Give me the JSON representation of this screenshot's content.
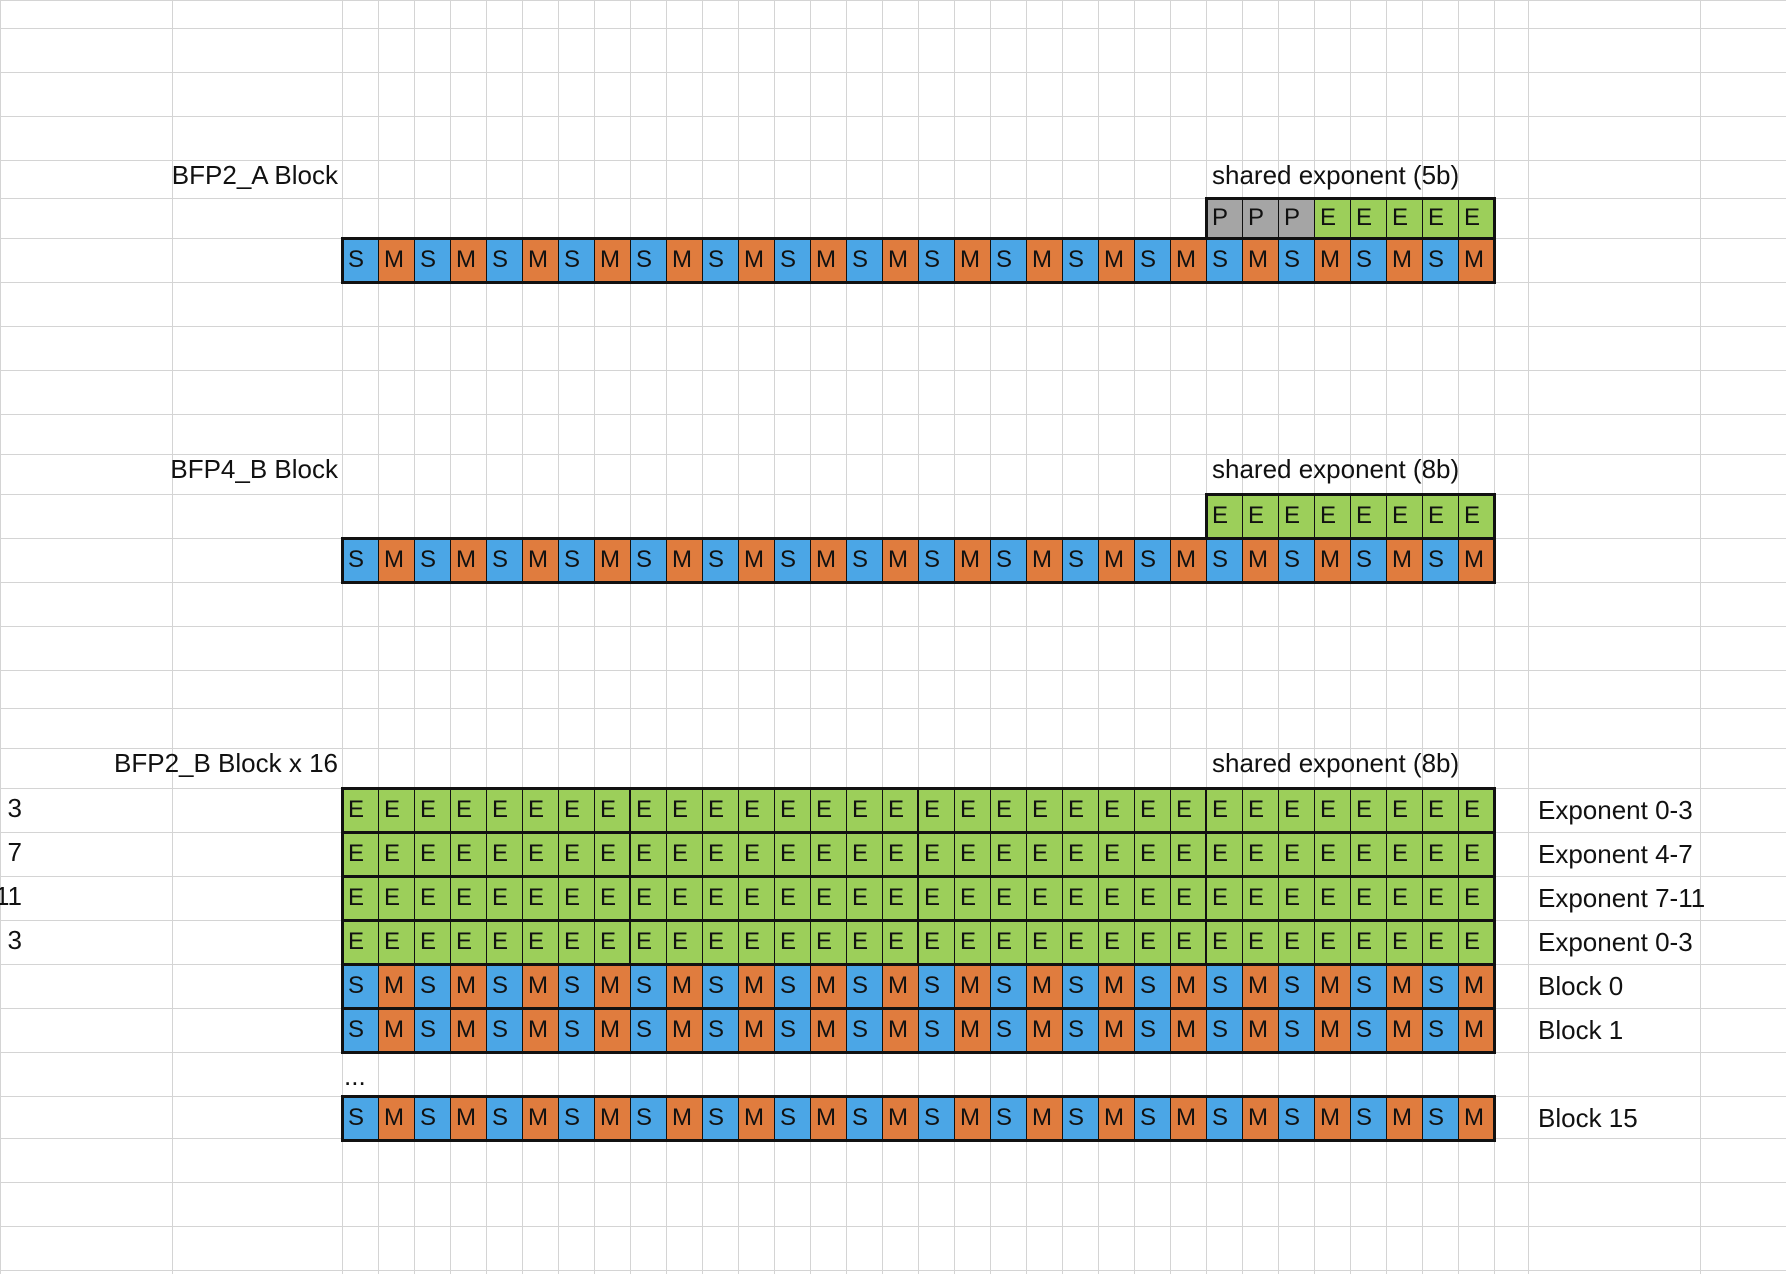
{
  "colors": {
    "sign": "#4ba6e6",
    "mantissa": "#e07c3e",
    "exponent": "#9ccf5a",
    "padding": "#a5a5a5",
    "gridline": "#d4d4d4"
  },
  "bfp2_a": {
    "title": "BFP2_A Block",
    "header": "shared exponent (5b)",
    "exponent_bits": [
      "P",
      "P",
      "P",
      "E",
      "E",
      "E",
      "E",
      "E"
    ],
    "mantissa_bits": [
      "S",
      "M",
      "S",
      "M",
      "S",
      "M",
      "S",
      "M",
      "S",
      "M",
      "S",
      "M",
      "S",
      "M",
      "S",
      "M",
      "S",
      "M",
      "S",
      "M",
      "S",
      "M",
      "S",
      "M",
      "S",
      "M",
      "S",
      "M",
      "S",
      "M",
      "S",
      "M"
    ]
  },
  "bfp4_b": {
    "title": "BFP4_B Block",
    "header": "shared exponent (8b)",
    "exponent_bits": [
      "E",
      "E",
      "E",
      "E",
      "E",
      "E",
      "E",
      "E"
    ],
    "mantissa_bits": [
      "S",
      "M",
      "S",
      "M",
      "S",
      "M",
      "S",
      "M",
      "S",
      "M",
      "S",
      "M",
      "S",
      "M",
      "S",
      "M",
      "S",
      "M",
      "S",
      "M",
      "S",
      "M",
      "S",
      "M",
      "S",
      "M",
      "S",
      "M",
      "S",
      "M",
      "S",
      "M"
    ]
  },
  "bfp2_b": {
    "title": "BFP2_B Block x 16",
    "header": "shared exponent (8b)",
    "ellipsis": "...",
    "left_fragments": [
      "3",
      "7",
      "11",
      "3"
    ],
    "rows": [
      {
        "kind": "exponent",
        "label": "Exponent 0-3",
        "bits": [
          "E",
          "E",
          "E",
          "E",
          "E",
          "E",
          "E",
          "E",
          "E",
          "E",
          "E",
          "E",
          "E",
          "E",
          "E",
          "E",
          "E",
          "E",
          "E",
          "E",
          "E",
          "E",
          "E",
          "E",
          "E",
          "E",
          "E",
          "E",
          "E",
          "E",
          "E",
          "E"
        ]
      },
      {
        "kind": "exponent",
        "label": "Exponent 4-7",
        "bits": [
          "E",
          "E",
          "E",
          "E",
          "E",
          "E",
          "E",
          "E",
          "E",
          "E",
          "E",
          "E",
          "E",
          "E",
          "E",
          "E",
          "E",
          "E",
          "E",
          "E",
          "E",
          "E",
          "E",
          "E",
          "E",
          "E",
          "E",
          "E",
          "E",
          "E",
          "E",
          "E"
        ]
      },
      {
        "kind": "exponent",
        "label": "Exponent 7-11",
        "bits": [
          "E",
          "E",
          "E",
          "E",
          "E",
          "E",
          "E",
          "E",
          "E",
          "E",
          "E",
          "E",
          "E",
          "E",
          "E",
          "E",
          "E",
          "E",
          "E",
          "E",
          "E",
          "E",
          "E",
          "E",
          "E",
          "E",
          "E",
          "E",
          "E",
          "E",
          "E",
          "E"
        ]
      },
      {
        "kind": "exponent",
        "label": "Exponent 0-3",
        "bits": [
          "E",
          "E",
          "E",
          "E",
          "E",
          "E",
          "E",
          "E",
          "E",
          "E",
          "E",
          "E",
          "E",
          "E",
          "E",
          "E",
          "E",
          "E",
          "E",
          "E",
          "E",
          "E",
          "E",
          "E",
          "E",
          "E",
          "E",
          "E",
          "E",
          "E",
          "E",
          "E"
        ]
      },
      {
        "kind": "block",
        "label": "Block 0",
        "bits": [
          "S",
          "M",
          "S",
          "M",
          "S",
          "M",
          "S",
          "M",
          "S",
          "M",
          "S",
          "M",
          "S",
          "M",
          "S",
          "M",
          "S",
          "M",
          "S",
          "M",
          "S",
          "M",
          "S",
          "M",
          "S",
          "M",
          "S",
          "M",
          "S",
          "M",
          "S",
          "M"
        ]
      },
      {
        "kind": "block",
        "label": "Block 1",
        "bits": [
          "S",
          "M",
          "S",
          "M",
          "S",
          "M",
          "S",
          "M",
          "S",
          "M",
          "S",
          "M",
          "S",
          "M",
          "S",
          "M",
          "S",
          "M",
          "S",
          "M",
          "S",
          "M",
          "S",
          "M",
          "S",
          "M",
          "S",
          "M",
          "S",
          "M",
          "S",
          "M"
        ]
      },
      {
        "kind": "block",
        "label": "Block 15",
        "bits": [
          "S",
          "M",
          "S",
          "M",
          "S",
          "M",
          "S",
          "M",
          "S",
          "M",
          "S",
          "M",
          "S",
          "M",
          "S",
          "M",
          "S",
          "M",
          "S",
          "M",
          "S",
          "M",
          "S",
          "M",
          "S",
          "M",
          "S",
          "M",
          "S",
          "M",
          "S",
          "M"
        ]
      }
    ]
  }
}
